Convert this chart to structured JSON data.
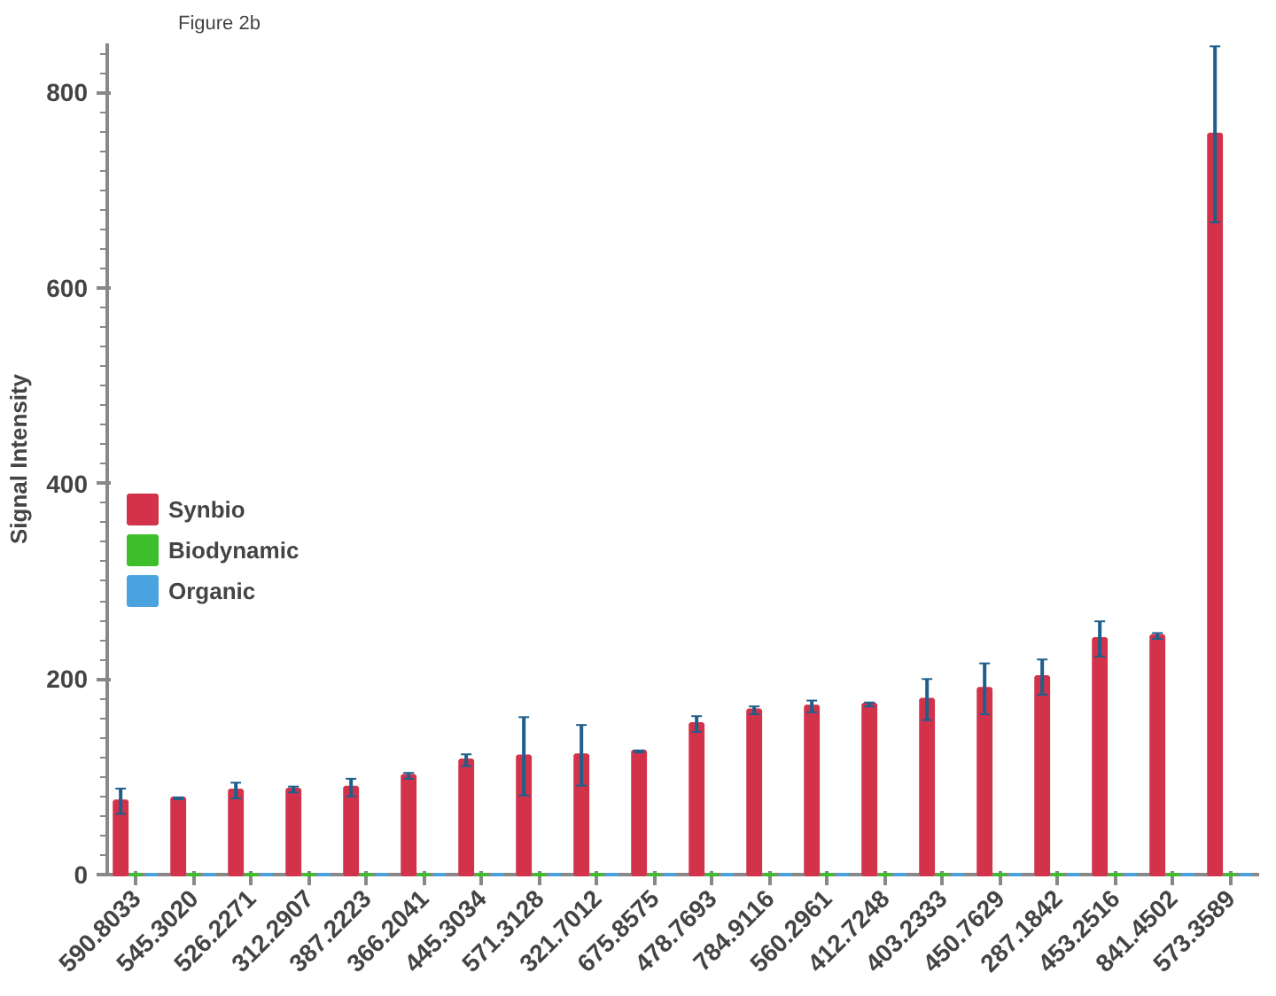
{
  "chart_data": {
    "type": "bar",
    "title": "Figure 2b",
    "ylabel": "Signal Intensity",
    "categories": [
      "590.8033",
      "545.3020",
      "526.2271",
      "312.2907",
      "387.2223",
      "366.2041",
      "445.3034",
      "571.3128",
      "321.7012",
      "675.8575",
      "478.7693",
      "784.9116",
      "560.2961",
      "412.7248",
      "403.2333",
      "450.7629",
      "287.1842",
      "453.2516",
      "841.4502",
      "573.3589"
    ],
    "series": [
      {
        "name": "Synbio",
        "color": "#d2334a",
        "values": [
          75,
          78,
          86,
          87,
          89,
          101,
          117,
          121,
          122,
          126,
          154,
          168,
          172,
          174,
          179,
          190,
          202,
          241,
          244,
          757
        ],
        "errors": [
          13,
          1,
          8,
          3,
          9,
          3,
          6,
          40,
          31,
          1,
          8,
          4,
          6,
          2,
          21,
          26,
          18,
          18,
          3,
          90
        ]
      },
      {
        "name": "Biodynamic",
        "color": "#3cbf2a",
        "values": [
          0,
          0,
          0,
          0,
          0,
          0,
          0,
          0,
          0,
          0,
          0,
          0,
          0,
          0,
          0,
          0,
          0,
          0,
          0,
          0
        ]
      },
      {
        "name": "Organic",
        "color": "#4aa3df",
        "values": [
          0,
          0,
          0,
          0,
          0,
          0,
          0,
          0,
          0,
          0,
          0,
          0,
          0,
          0,
          0,
          0,
          0,
          0,
          0,
          0
        ]
      }
    ],
    "ylim": [
      0,
      850
    ],
    "yticks": [
      0,
      200,
      400,
      600,
      800
    ],
    "grid": false,
    "legend": "bottom left"
  }
}
